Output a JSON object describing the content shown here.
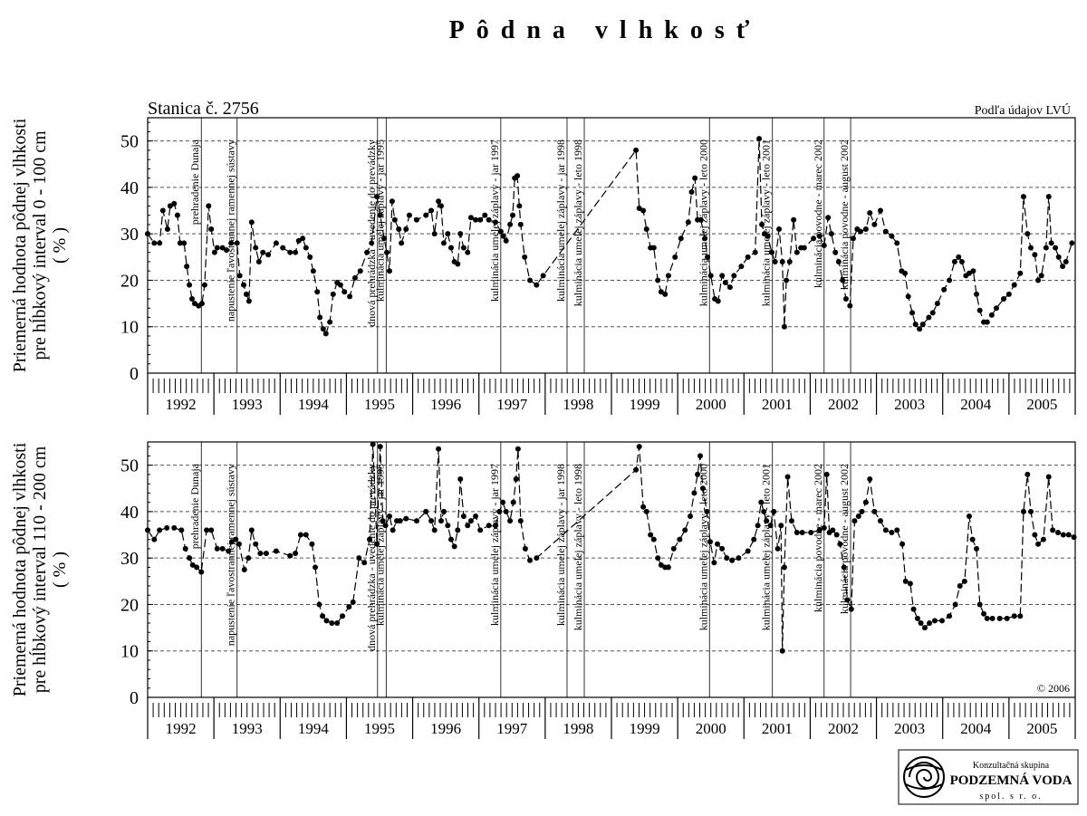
{
  "title": "Pôdna vlhkosť",
  "logo": {
    "line1": "Konzultačná skupina",
    "line2": "PODZEMNÁ VODA",
    "line3": "spol. s r. o."
  },
  "chart_data": [
    {
      "type": "line",
      "station": "Stanica č. 2756",
      "source": "Podľa údajov LVÚ",
      "ylabel": [
        "Priemerná hodnota pôdnej vlhkosti",
        "pre hĺbkový interval 0 - 100 cm",
        "( % )"
      ],
      "color": "#000000",
      "xlim": [
        1992,
        2006
      ],
      "ylim": [
        0,
        55
      ],
      "yticks": [
        0,
        10,
        20,
        30,
        40,
        50
      ],
      "grid": true,
      "xticks": [
        {
          "value": 1992.5,
          "label": "1992"
        },
        {
          "value": 1993.5,
          "label": "1993"
        },
        {
          "value": 1994.5,
          "label": "1994"
        },
        {
          "value": 1995.5,
          "label": "1995"
        },
        {
          "value": 1996.5,
          "label": "1996"
        },
        {
          "value": 1997.5,
          "label": "1997"
        },
        {
          "value": 1998.5,
          "label": "1998"
        },
        {
          "value": 1999.5,
          "label": "1999"
        },
        {
          "value": 2000.5,
          "label": "2000"
        },
        {
          "value": 2001.5,
          "label": "2001"
        },
        {
          "value": 2002.5,
          "label": "2002"
        },
        {
          "value": 2003.5,
          "label": "2003"
        },
        {
          "value": 2004.5,
          "label": "2004"
        },
        {
          "value": 2005.5,
          "label": "2005"
        }
      ],
      "events": [
        {
          "x": 1992.81,
          "label": "prehradenie Dunaja"
        },
        {
          "x": 1993.35,
          "label": "napustenie ľavostrannej ramennej sústavy"
        },
        {
          "x": 1995.47,
          "label": "dnová prehrádzka - uvedenie do prevádzky"
        },
        {
          "x": 1995.6,
          "label": "kulminácia umelej záplavy - jar 1995"
        },
        {
          "x": 1997.33,
          "label": "kulminácia umelej záplavy - jar 1997"
        },
        {
          "x": 1998.33,
          "label": "kulminácia umelej záplavy - jar 1998"
        },
        {
          "x": 1998.59,
          "label": "kulminácia umelej záplavy - leto 1998"
        },
        {
          "x": 2000.48,
          "label": "kulminácia umelej záplavy - leto 2000"
        },
        {
          "x": 2001.43,
          "label": "kulminácia umelej záplavy - leto 2001"
        },
        {
          "x": 2002.21,
          "label": "kulminácia povodne - marec 2002"
        },
        {
          "x": 2002.61,
          "label": "kulminácia povodne - august 2002"
        }
      ],
      "x": [
        1992.0,
        1992.1,
        1992.18,
        1992.23,
        1992.3,
        1992.34,
        1992.4,
        1992.45,
        1992.49,
        1992.55,
        1992.59,
        1992.63,
        1992.67,
        1992.71,
        1992.77,
        1992.82,
        1992.86,
        1992.92,
        1992.96,
        1993.01,
        1993.05,
        1993.13,
        1993.19,
        1993.26,
        1993.35,
        1993.39,
        1993.45,
        1993.49,
        1993.53,
        1993.57,
        1993.63,
        1993.68,
        1993.74,
        1993.82,
        1993.94,
        1994.04,
        1994.15,
        1994.23,
        1994.28,
        1994.34,
        1994.39,
        1994.45,
        1994.5,
        1994.56,
        1994.6,
        1994.65,
        1994.69,
        1994.75,
        1994.8,
        1994.86,
        1994.91,
        1994.97,
        1995.05,
        1995.13,
        1995.21,
        1995.31,
        1995.38,
        1995.46,
        1995.51,
        1995.57,
        1995.61,
        1995.65,
        1995.69,
        1995.73,
        1995.79,
        1995.83,
        1995.9,
        1995.95,
        1996.06,
        1996.2,
        1996.28,
        1996.33,
        1996.39,
        1996.43,
        1996.47,
        1996.53,
        1996.58,
        1996.63,
        1996.68,
        1996.72,
        1996.77,
        1996.83,
        1996.88,
        1996.95,
        1997.02,
        1997.09,
        1997.15,
        1997.25,
        1997.33,
        1997.37,
        1997.41,
        1997.47,
        1997.51,
        1997.54,
        1997.58,
        1997.61,
        1997.63,
        1997.69,
        1997.77,
        1997.87,
        1997.97,
        1999.37,
        1999.42,
        1999.48,
        1999.53,
        1999.59,
        1999.64,
        1999.7,
        1999.75,
        1999.81,
        1999.86,
        1999.96,
        2000.05,
        2000.16,
        2000.21,
        2000.26,
        2000.3,
        2000.35,
        2000.41,
        2000.45,
        2000.5,
        2000.56,
        2000.61,
        2000.67,
        2000.72,
        2000.79,
        2000.85,
        2000.96,
        2001.06,
        2001.17,
        2001.23,
        2001.27,
        2001.31,
        2001.36,
        2001.42,
        2001.47,
        2001.53,
        2001.58,
        2001.61,
        2001.64,
        2001.69,
        2001.75,
        2001.8,
        2001.86,
        2001.91,
        2002.05,
        2002.14,
        2002.21,
        2002.27,
        2002.32,
        2002.38,
        2002.43,
        2002.49,
        2002.54,
        2002.6,
        2002.65,
        2002.71,
        2002.76,
        2002.84,
        2002.9,
        2002.97,
        2003.06,
        2003.14,
        2003.23,
        2003.31,
        2003.38,
        2003.43,
        2003.48,
        2003.54,
        2003.59,
        2003.65,
        2003.7,
        2003.79,
        2003.85,
        2003.92,
        2004.02,
        2004.1,
        2004.18,
        2004.24,
        2004.29,
        2004.35,
        2004.4,
        2004.46,
        2004.51,
        2004.56,
        2004.62,
        2004.67,
        2004.74,
        2004.81,
        2004.92,
        2005.0,
        2005.08,
        2005.17,
        2005.22,
        2005.28,
        2005.33,
        2005.39,
        2005.44,
        2005.49,
        2005.56,
        2005.6,
        2005.64,
        2005.7,
        2005.75,
        2005.81,
        2005.86,
        2005.95
      ],
      "values": [
        30,
        28,
        28,
        35,
        31,
        36,
        36.5,
        34,
        28,
        28,
        23,
        19,
        16,
        15,
        14.5,
        15,
        19,
        36,
        31,
        26,
        27,
        27,
        26.5,
        28,
        28,
        21,
        19,
        17,
        15.5,
        32.5,
        27,
        24,
        26,
        25.5,
        28,
        27,
        26,
        26,
        28.5,
        29,
        27,
        25,
        22,
        17.5,
        12,
        9.5,
        8.5,
        11,
        17,
        19.5,
        19,
        17.5,
        16.5,
        20.5,
        22,
        26,
        28,
        38,
        34,
        29,
        26,
        22,
        37,
        33,
        31,
        28,
        31,
        34,
        33,
        34,
        35,
        30,
        37,
        36,
        28,
        30,
        27,
        24,
        23.5,
        30,
        27,
        26,
        33.5,
        33,
        33,
        34,
        33,
        32.5,
        30.5,
        29.5,
        28.5,
        32,
        34,
        42,
        42.5,
        36,
        32,
        25,
        20,
        19,
        21,
        48,
        35.5,
        35,
        31,
        27,
        27,
        20,
        17.5,
        17,
        21,
        25,
        29,
        32.5,
        39,
        42,
        33,
        33,
        29,
        25,
        21,
        16,
        15.5,
        21,
        19.5,
        18.5,
        21,
        23,
        25,
        26,
        50.5,
        32,
        30,
        29.5,
        26,
        24,
        31,
        24,
        10,
        20,
        24,
        33,
        26,
        27,
        27,
        29,
        29.5,
        27.5,
        33.5,
        30,
        26,
        24,
        20,
        16,
        14.5,
        29,
        31,
        30.5,
        31,
        34.5,
        32,
        35,
        30.5,
        29.5,
        28,
        22,
        21.5,
        16.5,
        13,
        10.5,
        9.5,
        10.5,
        12,
        13,
        15,
        18,
        20,
        24,
        25,
        24,
        21,
        21.5,
        22,
        17,
        13.5,
        11,
        11,
        12.5,
        14,
        16,
        17,
        19,
        21.5,
        38,
        30,
        27,
        25.5,
        20,
        21,
        27,
        38,
        28,
        27,
        25,
        23,
        24,
        28
      ]
    },
    {
      "type": "line",
      "copyright": "© 2006",
      "ylabel": [
        "Priemerná hodnota pôdnej vlhkosti",
        "pre hĺbkový interval 110 - 200 cm",
        "( % )"
      ],
      "color": "#000000",
      "xlim": [
        1992,
        2006
      ],
      "ylim": [
        0,
        55
      ],
      "yticks": [
        0,
        10,
        20,
        30,
        40,
        50
      ],
      "grid": true,
      "xticks": [
        {
          "value": 1992.5,
          "label": "1992"
        },
        {
          "value": 1993.5,
          "label": "1993"
        },
        {
          "value": 1994.5,
          "label": "1994"
        },
        {
          "value": 1995.5,
          "label": "1995"
        },
        {
          "value": 1996.5,
          "label": "1996"
        },
        {
          "value": 1997.5,
          "label": "1997"
        },
        {
          "value": 1998.5,
          "label": "1998"
        },
        {
          "value": 1999.5,
          "label": "1999"
        },
        {
          "value": 2000.5,
          "label": "2000"
        },
        {
          "value": 2001.5,
          "label": "2001"
        },
        {
          "value": 2002.5,
          "label": "2002"
        },
        {
          "value": 2003.5,
          "label": "2003"
        },
        {
          "value": 2004.5,
          "label": "2004"
        },
        {
          "value": 2005.5,
          "label": "2005"
        }
      ],
      "events": [
        {
          "x": 1992.81,
          "label": "prehradenie Dunaja"
        },
        {
          "x": 1993.35,
          "label": "napustenie ľavostrannej ramennej sústavy"
        },
        {
          "x": 1995.47,
          "label": "dnová prehrádzka - uvedenie do prevádzky"
        },
        {
          "x": 1995.6,
          "label": "kulminácia umelej záplavy - jar 1995"
        },
        {
          "x": 1997.33,
          "label": "kulminácia umelej záplavy - jar 1997"
        },
        {
          "x": 1998.33,
          "label": "kulminácia umelej záplavy - jar 1998"
        },
        {
          "x": 1998.59,
          "label": "kulminácia umelej záplavy - leto 1998"
        },
        {
          "x": 2000.48,
          "label": "kulminácia umelej záplavy - leto 2000"
        },
        {
          "x": 2001.43,
          "label": "kulminácia umelej záplavy - leto 2001"
        },
        {
          "x": 2002.21,
          "label": "kulminácia povodne - marec 2002"
        },
        {
          "x": 2002.61,
          "label": "kulminácia povodne - august 2002"
        }
      ],
      "x": [
        1992.0,
        1992.1,
        1992.18,
        1992.29,
        1992.4,
        1992.51,
        1992.57,
        1992.63,
        1992.68,
        1992.74,
        1992.81,
        1992.89,
        1992.96,
        1993.05,
        1993.13,
        1993.22,
        1993.27,
        1993.33,
        1993.38,
        1993.46,
        1993.52,
        1993.57,
        1993.63,
        1993.7,
        1993.79,
        1993.94,
        1994.15,
        1994.23,
        1994.31,
        1994.39,
        1994.48,
        1994.53,
        1994.59,
        1994.64,
        1994.7,
        1994.78,
        1994.86,
        1994.94,
        1995.04,
        1995.1,
        1995.19,
        1995.27,
        1995.35,
        1995.4,
        1995.46,
        1995.51,
        1995.55,
        1995.59,
        1995.65,
        1995.7,
        1995.76,
        1995.81,
        1995.9,
        1996.06,
        1996.2,
        1996.28,
        1996.33,
        1996.39,
        1996.43,
        1996.47,
        1996.53,
        1996.58,
        1996.63,
        1996.68,
        1996.72,
        1996.77,
        1996.83,
        1996.88,
        1996.95,
        1997.02,
        1997.15,
        1997.25,
        1997.31,
        1997.36,
        1997.41,
        1997.47,
        1997.52,
        1997.56,
        1997.59,
        1997.63,
        1997.7,
        1997.77,
        1997.87,
        1999.37,
        1999.42,
        1999.48,
        1999.53,
        1999.59,
        1999.64,
        1999.7,
        1999.75,
        1999.81,
        1999.86,
        1999.94,
        2000.03,
        2000.11,
        2000.19,
        2000.25,
        2000.3,
        2000.34,
        2000.38,
        2000.44,
        2000.49,
        2000.55,
        2000.6,
        2000.67,
        2000.74,
        2000.82,
        2000.92,
        2001.06,
        2001.15,
        2001.21,
        2001.26,
        2001.3,
        2001.34,
        2001.4,
        2001.45,
        2001.51,
        2001.56,
        2001.58,
        2001.61,
        2001.66,
        2001.72,
        2001.8,
        2001.88,
        2002.01,
        2002.14,
        2002.21,
        2002.25,
        2002.29,
        2002.34,
        2002.4,
        2002.45,
        2002.51,
        2002.56,
        2002.62,
        2002.67,
        2002.73,
        2002.78,
        2002.84,
        2002.9,
        2002.97,
        2003.06,
        2003.14,
        2003.23,
        2003.31,
        2003.39,
        2003.44,
        2003.51,
        2003.56,
        2003.62,
        2003.67,
        2003.73,
        2003.8,
        2003.88,
        2003.99,
        2004.1,
        2004.19,
        2004.26,
        2004.33,
        2004.4,
        2004.45,
        2004.51,
        2004.56,
        2004.62,
        2004.67,
        2004.75,
        2004.86,
        2004.97,
        2005.08,
        2005.17,
        2005.22,
        2005.28,
        2005.33,
        2005.39,
        2005.44,
        2005.52,
        2005.6,
        2005.66,
        2005.74,
        2005.82,
        2005.9,
        2005.98
      ],
      "values": [
        36,
        34,
        36,
        36.5,
        36.5,
        36,
        32,
        30,
        28.5,
        28,
        27,
        36,
        36,
        32,
        32,
        31.5,
        33.5,
        34,
        33,
        27.5,
        30,
        36,
        33,
        31,
        31,
        31.5,
        30.5,
        31,
        35,
        35,
        33,
        28,
        20,
        17.5,
        16.5,
        16,
        16,
        17.5,
        19.5,
        20.5,
        30,
        29,
        34,
        54.5,
        33,
        54,
        38,
        37,
        39,
        36,
        38,
        38,
        38.5,
        38,
        40,
        38,
        36,
        53.5,
        38,
        40,
        37,
        34,
        32.5,
        36,
        47,
        39,
        37,
        38,
        39,
        36,
        37,
        37,
        40,
        42,
        40,
        38,
        42,
        47,
        53.5,
        38,
        32,
        29.5,
        30,
        49,
        54,
        41,
        40,
        35,
        34,
        30,
        28.5,
        28,
        28,
        32,
        34,
        36,
        39,
        44,
        48,
        52,
        45,
        40,
        33.5,
        29,
        33,
        32,
        30,
        29.5,
        30,
        31.5,
        34,
        37,
        42,
        40,
        38,
        37,
        40,
        32,
        37,
        10,
        28,
        47.5,
        38,
        35.5,
        35.5,
        35.5,
        36,
        36.5,
        48,
        35.5,
        36,
        35,
        33,
        28,
        21,
        19,
        38,
        39,
        40,
        42,
        47,
        40,
        38,
        36,
        35.5,
        36,
        33,
        25,
        24.5,
        19,
        17,
        16,
        15,
        16,
        16.5,
        16.5,
        17.5,
        20,
        24,
        25,
        39,
        34,
        32,
        20,
        18,
        17,
        17,
        17,
        17,
        17.5,
        17.5,
        40,
        48,
        40,
        35,
        33,
        34,
        47.5,
        36,
        35.5,
        35,
        35,
        34.5
      ]
    }
  ]
}
